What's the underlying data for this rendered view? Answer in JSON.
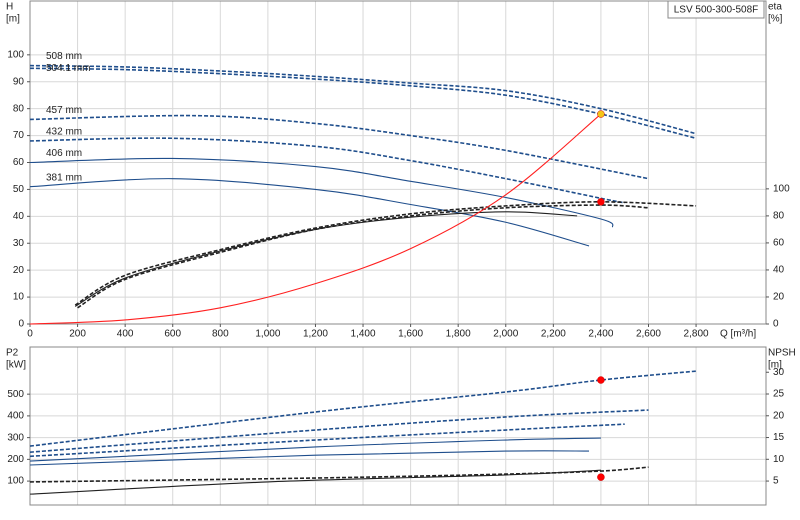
{
  "chart_data": [
    {
      "type": "line",
      "title": "LSV 500-300-508F",
      "y_label": "H",
      "y_unit": "[m]",
      "y2_label": "eta",
      "y2_unit": "[%]",
      "x_label": "Q [m³/h]",
      "xlim": [
        0,
        3094
      ],
      "xticks": [
        0,
        200,
        400,
        600,
        800,
        {
          "value": 1000,
          "label": "1,000"
        },
        {
          "value": 1200,
          "label": "1,200"
        },
        {
          "value": 1400,
          "label": "1,400"
        },
        {
          "value": 1600,
          "label": "1,600"
        },
        {
          "value": 1800,
          "label": "1,800"
        },
        {
          "value": 2000,
          "label": "2,000"
        },
        {
          "value": 2200,
          "label": "2,200"
        },
        {
          "value": 2400,
          "label": "2,400"
        },
        {
          "value": 2600,
          "label": "2,600"
        },
        {
          "value": 2800,
          "label": "2,800"
        }
      ],
      "ylim": [
        0,
        120
      ],
      "yticks": [
        0,
        10,
        20,
        30,
        40,
        50,
        60,
        70,
        80,
        90,
        100
      ],
      "y2lim": [
        0,
        239
      ],
      "y2ticks": [
        0,
        20,
        40,
        60,
        80,
        100
      ],
      "grid": true,
      "series": [
        {
          "label": "508 mm",
          "color": "#1f4e8c",
          "style": "dashed",
          "x": [
            0,
            400,
            800,
            1200,
            1600,
            2000,
            2400,
            2800
          ],
          "values": [
            96,
            95.5,
            94,
            92,
            89.5,
            86.7,
            80,
            70.7
          ]
        },
        {
          "label": "504.1 mm",
          "color": "#1f4e8c",
          "style": "dashed",
          "x": [
            0,
            400,
            800,
            1200,
            1600,
            2000,
            2400,
            2800
          ],
          "values": [
            95,
            94.5,
            93,
            91,
            88.5,
            85,
            78,
            69
          ]
        },
        {
          "label": "457 mm",
          "color": "#1f4e8c",
          "style": "dashed",
          "x": [
            0,
            700,
            1200,
            1600,
            2000,
            2600
          ],
          "values": [
            76,
            77.4,
            74.5,
            70,
            64.5,
            54
          ]
        },
        {
          "label": "432 mm",
          "color": "#1f4e8c",
          "style": "dashed",
          "x": [
            0,
            600,
            1200,
            1600,
            2000,
            2400,
            2500
          ],
          "values": [
            68,
            69,
            66,
            60.7,
            54,
            46.7,
            45
          ]
        },
        {
          "label": "406 mm",
          "color": "#1f4e8c",
          "style": "solid",
          "x": [
            0,
            600,
            1200,
            1600,
            2000,
            2400,
            2450
          ],
          "values": [
            60,
            61.5,
            58.5,
            53,
            47,
            39,
            36
          ]
        },
        {
          "label": "381 mm",
          "color": "#1f4e8c",
          "style": "solid",
          "x": [
            0,
            600,
            1200,
            1600,
            2000,
            2350
          ],
          "values": [
            51,
            54,
            50,
            44.4,
            37.8,
            29
          ]
        },
        {
          "color": "#222222",
          "style": "dashed",
          "axis": "y2",
          "x": [
            190,
            400,
            800,
            1200,
            1600,
            2000,
            2400,
            2800
          ],
          "values": [
            14,
            36,
            55,
            71,
            81.5,
            87.4,
            90.4,
            87.4
          ]
        },
        {
          "color": "#222222",
          "style": "dashed",
          "axis": "y2",
          "x": [
            200,
            400,
            800,
            1200,
            1600,
            2000,
            2400,
            2600
          ],
          "values": [
            12,
            33,
            53,
            70,
            80,
            86,
            88,
            86
          ]
        },
        {
          "color": "#222222",
          "style": "solid",
          "axis": "y2",
          "x": [
            190,
            400,
            800,
            1200,
            1600,
            2000,
            2300
          ],
          "values": [
            13,
            34,
            54,
            70,
            79,
            83,
            80
          ]
        },
        {
          "color": "#ff2020",
          "style": "solid",
          "x": [
            0,
            400,
            800,
            1200,
            1600,
            2000,
            2400
          ],
          "values": [
            0,
            1.5,
            6,
            15,
            28,
            48,
            78
          ]
        }
      ],
      "markers": [
        {
          "color": "#f5c518",
          "x": 2400,
          "value": 78
        },
        {
          "color": "#ff0000",
          "axis": "y2",
          "x": 2400,
          "value": 90.4
        }
      ]
    },
    {
      "type": "line",
      "y_label": "P2",
      "y_unit": "[kW]",
      "y2_label": "NPSH",
      "y2_unit": "[m]",
      "ylim": [
        -10,
        717
      ],
      "yticks": [
        100,
        200,
        300,
        400,
        500
      ],
      "y2lim": [
        -0.5,
        35.8
      ],
      "y2ticks": [
        5,
        10,
        15,
        20,
        25,
        30
      ],
      "grid": true,
      "series": [
        {
          "color": "#1f4e8c",
          "style": "dashed",
          "x": [
            0,
            1200,
            2000,
            2400,
            2800
          ],
          "values": [
            261,
            418,
            510,
            565,
            606
          ]
        },
        {
          "color": "#1f4e8c",
          "style": "dashed",
          "x": [
            0,
            1200,
            2000,
            2600
          ],
          "values": [
            233,
            335,
            395,
            427
          ]
        },
        {
          "color": "#1f4e8c",
          "style": "dashed",
          "x": [
            0,
            1200,
            2000,
            2500
          ],
          "values": [
            214,
            289,
            335,
            362
          ]
        },
        {
          "color": "#1f4e8c",
          "style": "solid",
          "x": [
            0,
            1200,
            2000,
            2400
          ],
          "values": [
            192,
            257,
            289,
            298
          ]
        },
        {
          "color": "#1f4e8c",
          "style": "solid",
          "x": [
            0,
            1200,
            2000,
            2350
          ],
          "values": [
            174,
            219,
            238,
            238
          ]
        },
        {
          "color": "#222222",
          "style": "dashed",
          "axis": "y2",
          "x": [
            0,
            1200,
            2000,
            2400,
            2600
          ],
          "values": [
            4.8,
            5.7,
            6.6,
            7.3,
            8.2
          ]
        },
        {
          "color": "#222222",
          "style": "solid",
          "axis": "y2",
          "x": [
            0,
            1000,
            2000,
            2400
          ],
          "values": [
            2,
            4.8,
            6.4,
            7.5
          ]
        }
      ],
      "markers": [
        {
          "color": "#ff0000",
          "x": 2400,
          "value": 565
        },
        {
          "color": "#ff0000",
          "axis": "y2",
          "x": 2400,
          "value": 5.9
        }
      ]
    }
  ]
}
